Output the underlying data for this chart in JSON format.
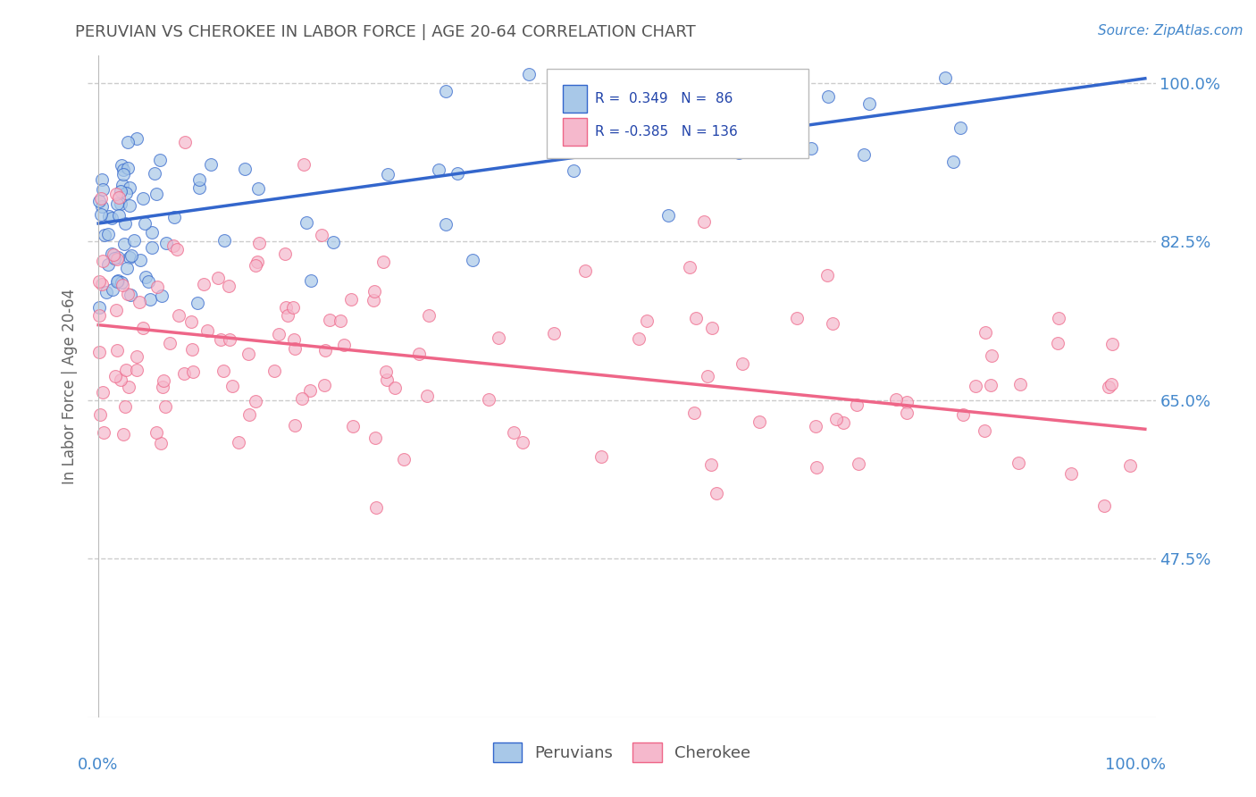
{
  "title": "PERUVIAN VS CHEROKEE IN LABOR FORCE | AGE 20-64 CORRELATION CHART",
  "source": "Source: ZipAtlas.com",
  "ylabel": "In Labor Force | Age 20-64",
  "ytick_labels": [
    "100.0%",
    "82.5%",
    "65.0%",
    "47.5%"
  ],
  "ytick_values": [
    1.0,
    0.825,
    0.65,
    0.475
  ],
  "xlim": [
    0.0,
    1.0
  ],
  "ylim": [
    0.3,
    1.03
  ],
  "peruvian_color": "#a8c8e8",
  "cherokee_color": "#f5b8cc",
  "peruvian_line_color": "#3366cc",
  "cherokee_line_color": "#ee6688",
  "title_color": "#555555",
  "axis_label_color": "#4488cc",
  "background_color": "#ffffff",
  "grid_color": "#cccccc",
  "legend_r1_text": "R =  0.349   N =  86",
  "legend_r2_text": "R = -0.385   N = 136",
  "peru_trend_x0": 0.0,
  "peru_trend_y0": 0.845,
  "peru_trend_x1": 1.0,
  "peru_trend_y1": 1.005,
  "cher_trend_x0": 0.0,
  "cher_trend_y0": 0.733,
  "cher_trend_x1": 1.0,
  "cher_trend_y1": 0.618
}
